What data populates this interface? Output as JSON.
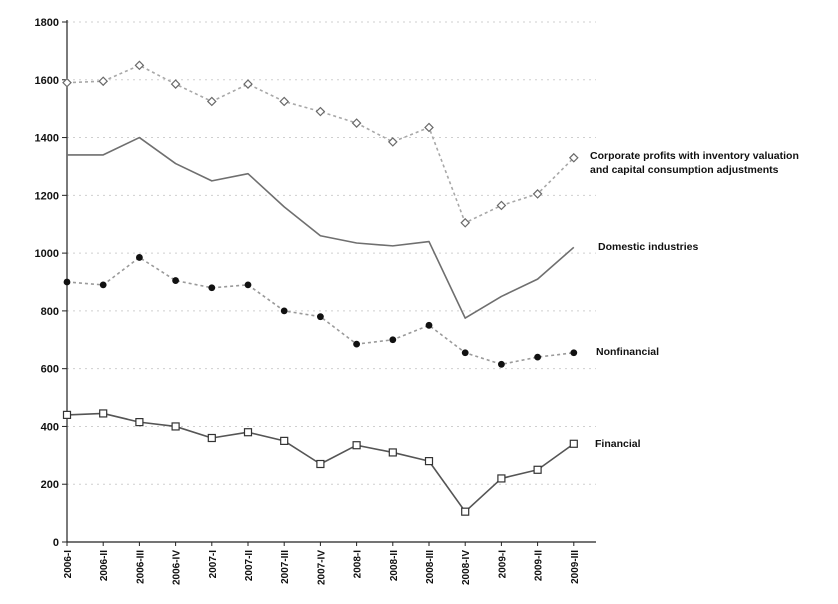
{
  "chart_data": {
    "type": "line",
    "title": "",
    "xlabel": "",
    "ylabel": "",
    "ylim": [
      0,
      1800
    ],
    "yticks": [
      0,
      200,
      400,
      600,
      800,
      1000,
      1200,
      1400,
      1600,
      1800
    ],
    "grid": "horizontal dashed",
    "categories": [
      "2006-I",
      "2006-II",
      "2006-III",
      "2006-IV",
      "2007-I",
      "2007-II",
      "2007-III",
      "2007-IV",
      "2008-I",
      "2008-II",
      "2008-III",
      "2008-IV",
      "2009-I",
      "2009-II",
      "2009-III"
    ],
    "series": [
      {
        "name_lines": [
          "Corporate profits with inventory valuation",
          "and capital consumption adjustments"
        ],
        "values": [
          1590,
          1595,
          1650,
          1585,
          1525,
          1585,
          1525,
          1490,
          1450,
          1385,
          1435,
          1105,
          1165,
          1205,
          1330
        ],
        "color": "#a8a8a8",
        "line_style": "dashed",
        "marker": "diamond-open"
      },
      {
        "name_lines": [
          "Domestic industries"
        ],
        "values": [
          1340,
          1340,
          1400,
          1310,
          1250,
          1275,
          1160,
          1060,
          1035,
          1025,
          1040,
          775,
          850,
          910,
          1020
        ],
        "color": "#6f6f6f",
        "line_style": "solid",
        "marker": "none"
      },
      {
        "name_lines": [
          "Nonfinancial"
        ],
        "values": [
          900,
          890,
          985,
          905,
          880,
          890,
          800,
          780,
          685,
          700,
          750,
          655,
          615,
          640,
          655
        ],
        "color": "#9a9a9a",
        "line_style": "dashed",
        "marker": "dot"
      },
      {
        "name_lines": [
          "Financial"
        ],
        "values": [
          440,
          445,
          415,
          400,
          360,
          380,
          350,
          270,
          335,
          310,
          280,
          105,
          220,
          250,
          340
        ],
        "color": "#555555",
        "line_style": "solid",
        "marker": "square-open"
      }
    ]
  }
}
